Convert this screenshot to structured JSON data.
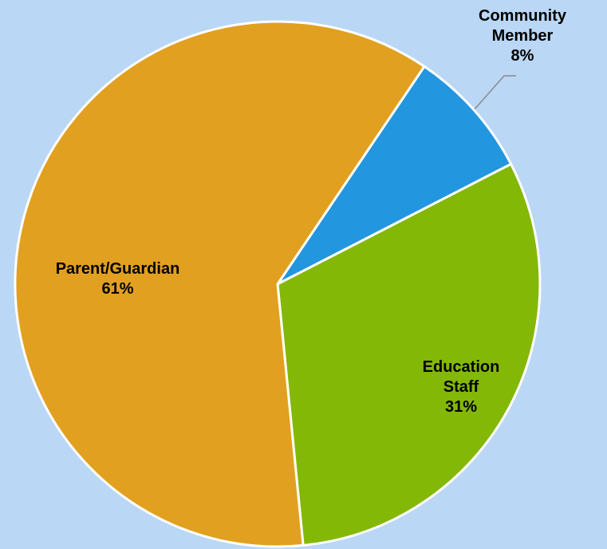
{
  "chart_data": {
    "type": "pie",
    "categories": [
      "Community Member",
      "Education Staff",
      "Parent/Guardian"
    ],
    "values": [
      8,
      31,
      61
    ],
    "value_labels": [
      "8%",
      "31%",
      "61%"
    ],
    "colors": [
      "#2396e0",
      "#84b807",
      "#e2a020"
    ]
  }
}
